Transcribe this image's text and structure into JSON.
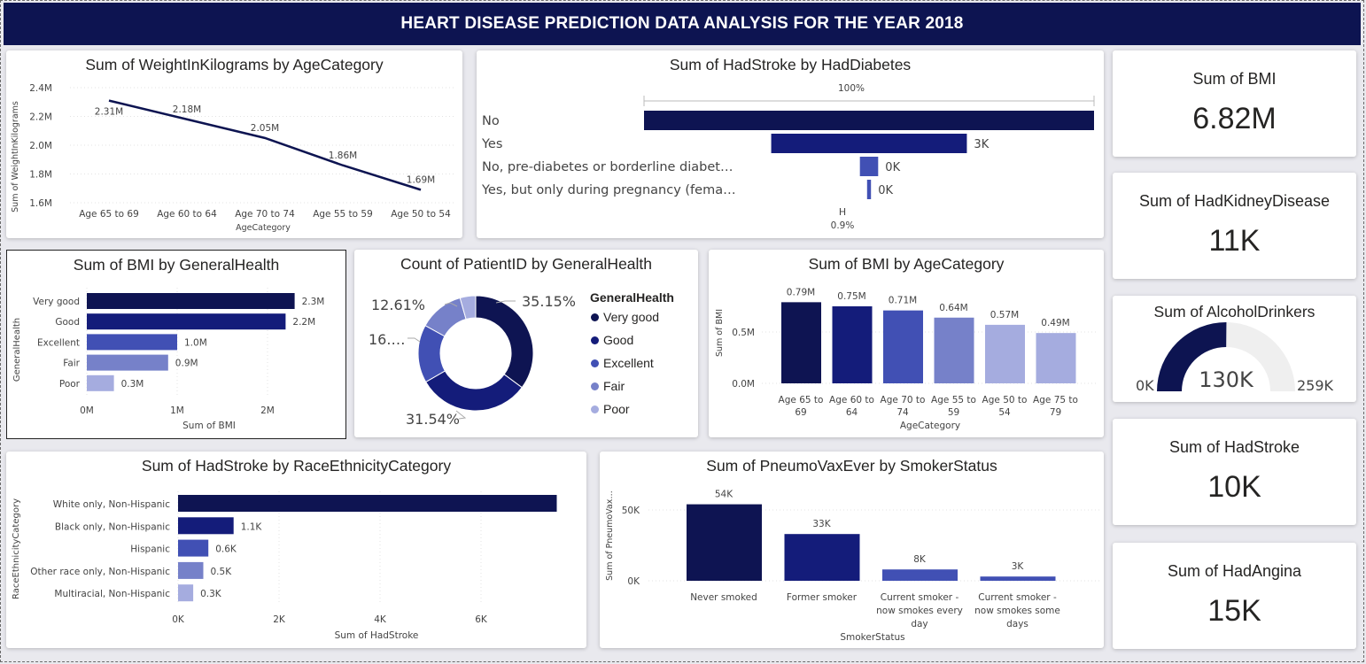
{
  "header": {
    "title": "HEART DISEASE PREDICTION DATA ANALYSIS FOR THE YEAR 2018"
  },
  "colors": {
    "navy": "#0d1451",
    "c1": "#0e1452",
    "c2": "#141c7a",
    "c3": "#4150b4",
    "c4": "#7681c9",
    "c5": "#a5acdf"
  },
  "weight_chart": {
    "title": "Sum of WeightInKilograms by AgeCategory",
    "xlabel": "AgeCategory",
    "ylabel": "Sum of WeightInKilograms",
    "yticks": [
      "2.4M",
      "2.2M",
      "2.0M",
      "1.8M",
      "1.6M"
    ],
    "categories": [
      "Age 65 to 69",
      "Age 60 to 64",
      "Age 70 to 74",
      "Age 55 to 59",
      "Age 50 to 54"
    ],
    "labels": [
      "2.31M",
      "2.18M",
      "2.05M",
      "1.86M",
      "1.69M"
    ]
  },
  "stroke_diabetes_chart": {
    "title": "Sum of HadStroke by HadDiabetes",
    "top_label": "100%",
    "bottom_label": "0.9%",
    "categories": [
      "No",
      "Yes",
      "No, pre-diabetes or borderline diabet…",
      "Yes, but only during pregnancy (fema…"
    ],
    "labels": [
      "",
      "3K",
      "0K",
      "0K"
    ]
  },
  "kpis": {
    "bmi": {
      "label": "Sum of BMI",
      "value": "6.82M"
    },
    "kidney": {
      "label": "Sum of HadKidneyDisease",
      "value": "11K"
    },
    "alcohol": {
      "label": "Sum of AlcoholDrinkers",
      "value": "130K",
      "min": "0K",
      "max": "259K"
    },
    "stroke": {
      "label": "Sum of HadStroke",
      "value": "10K"
    },
    "angina": {
      "label": "Sum of HadAngina",
      "value": "15K"
    }
  },
  "bmi_health_chart": {
    "title": "Sum of BMI by GeneralHealth",
    "xlabel": "Sum of BMI",
    "ylabel": "GeneralHealth",
    "xticks": [
      "0M",
      "1M",
      "2M"
    ],
    "categories": [
      "Very good",
      "Good",
      "Excellent",
      "Fair",
      "Poor"
    ],
    "labels": [
      "2.3M",
      "2.2M",
      "1.0M",
      "0.9M",
      "0.3M"
    ]
  },
  "donut_chart": {
    "title": "Count of PatientID by GeneralHealth",
    "legend_title": "GeneralHealth",
    "legend": [
      "Very good",
      "Good",
      "Excellent",
      "Fair",
      "Poor"
    ],
    "labels": [
      "35.15%",
      "31.54%",
      "16.…",
      "12.61%"
    ]
  },
  "bmi_age_chart": {
    "title": "Sum of BMI by AgeCategory",
    "xlabel": "AgeCategory",
    "ylabel": "Sum of BMI",
    "yticks": [
      "0.5M",
      "0.0M"
    ],
    "categories": [
      [
        "Age 65 to",
        "69"
      ],
      [
        "Age 60 to",
        "64"
      ],
      [
        "Age 70 to",
        "74"
      ],
      [
        "Age 55 to",
        "59"
      ],
      [
        "Age 50 to",
        "54"
      ],
      [
        "Age 75 to",
        "79"
      ]
    ],
    "labels": [
      "0.79M",
      "0.75M",
      "0.71M",
      "0.64M",
      "0.57M",
      "0.49M"
    ]
  },
  "stroke_race_chart": {
    "title": "Sum of HadStroke by RaceEthnicityCategory",
    "xlabel": "Sum of HadStroke",
    "ylabel": "RaceEthnicityCategory",
    "xticks": [
      "0K",
      "2K",
      "4K",
      "6K"
    ],
    "categories": [
      "White only, Non-Hispanic",
      "Black only, Non-Hispanic",
      "Hispanic",
      "Other race only, Non-Hispanic",
      "Multiracial, Non-Hispanic"
    ],
    "labels": [
      "",
      "1.1K",
      "0.6K",
      "0.5K",
      "0.3K"
    ]
  },
  "pneumo_chart": {
    "title": "Sum of PneumoVaxEver by SmokerStatus",
    "xlabel": "SmokerStatus",
    "ylabel": "Sum of PneumoVax…",
    "yticks": [
      "50K",
      "0K"
    ],
    "categories": [
      [
        "Never smoked"
      ],
      [
        "Former smoker"
      ],
      [
        "Current smoker -",
        "now smokes every",
        "day"
      ],
      [
        "Current smoker -",
        "now smokes some",
        "days"
      ]
    ],
    "labels": [
      "54K",
      "33K",
      "8K",
      "3K"
    ]
  },
  "chart_data": [
    {
      "type": "line",
      "title": "Sum of WeightInKilograms by AgeCategory",
      "xlabel": "AgeCategory",
      "ylabel": "Sum of WeightInKilograms",
      "categories": [
        "Age 65 to 69",
        "Age 60 to 64",
        "Age 70 to 74",
        "Age 55 to 59",
        "Age 50 to 54"
      ],
      "values": [
        2.31,
        2.18,
        2.05,
        1.86,
        1.69
      ],
      "unit": "M",
      "ylim": [
        1.6,
        2.4
      ],
      "grid": true
    },
    {
      "type": "bar",
      "orientation": "horizontal",
      "title": "Sum of HadStroke by HadDiabetes",
      "categories": [
        "No",
        "Yes",
        "No, pre-diabetes or borderline diabet…",
        "Yes, but only during pregnancy (fema…"
      ],
      "values": [
        6.9,
        3.0,
        0.28,
        0.06
      ],
      "unit": "K"
    },
    {
      "type": "bar",
      "orientation": "horizontal",
      "title": "Sum of BMI by GeneralHealth",
      "xlabel": "Sum of BMI",
      "ylabel": "GeneralHealth",
      "categories": [
        "Very good",
        "Good",
        "Excellent",
        "Fair",
        "Poor"
      ],
      "values": [
        2.3,
        2.2,
        1.0,
        0.9,
        0.3
      ],
      "unit": "M",
      "xlim": [
        0,
        2.5
      ]
    },
    {
      "type": "pie",
      "donut": true,
      "title": "Count of PatientID by GeneralHealth",
      "legend_title": "GeneralHealth",
      "categories": [
        "Very good",
        "Good",
        "Excellent",
        "Fair",
        "Poor"
      ],
      "values": [
        35.15,
        31.54,
        16.3,
        12.61,
        4.4
      ],
      "unit": "%",
      "legend": "right"
    },
    {
      "type": "bar",
      "title": "Sum of BMI by AgeCategory",
      "xlabel": "AgeCategory",
      "ylabel": "Sum of BMI",
      "categories": [
        "Age 65 to 69",
        "Age 60 to 64",
        "Age 70 to 74",
        "Age 55 to 59",
        "Age 50 to 54",
        "Age 75 to 79"
      ],
      "values": [
        0.79,
        0.75,
        0.71,
        0.64,
        0.57,
        0.49
      ],
      "unit": "M",
      "ylim": [
        0,
        0.8
      ]
    },
    {
      "type": "bar",
      "orientation": "horizontal",
      "title": "Sum of HadStroke by RaceEthnicityCategory",
      "xlabel": "Sum of HadStroke",
      "ylabel": "RaceEthnicityCategory",
      "categories": [
        "White only, Non-Hispanic",
        "Black only, Non-Hispanic",
        "Hispanic",
        "Other race only, Non-Hispanic",
        "Multiracial, Non-Hispanic"
      ],
      "values": [
        7.5,
        1.1,
        0.6,
        0.5,
        0.3
      ],
      "unit": "K",
      "xlim": [
        0,
        7.5
      ]
    },
    {
      "type": "bar",
      "title": "Sum of PneumoVaxEver by SmokerStatus",
      "xlabel": "SmokerStatus",
      "ylabel": "Sum of PneumoVax…",
      "categories": [
        "Never smoked",
        "Former smoker",
        "Current smoker - now smokes every day",
        "Current smoker - now smokes some days"
      ],
      "values": [
        54,
        33,
        8,
        3
      ],
      "unit": "K",
      "ylim": [
        0,
        60
      ]
    },
    {
      "type": "gauge",
      "title": "Sum of AlcoholDrinkers",
      "value": 130,
      "min": 0,
      "max": 259,
      "unit": "K"
    }
  ]
}
